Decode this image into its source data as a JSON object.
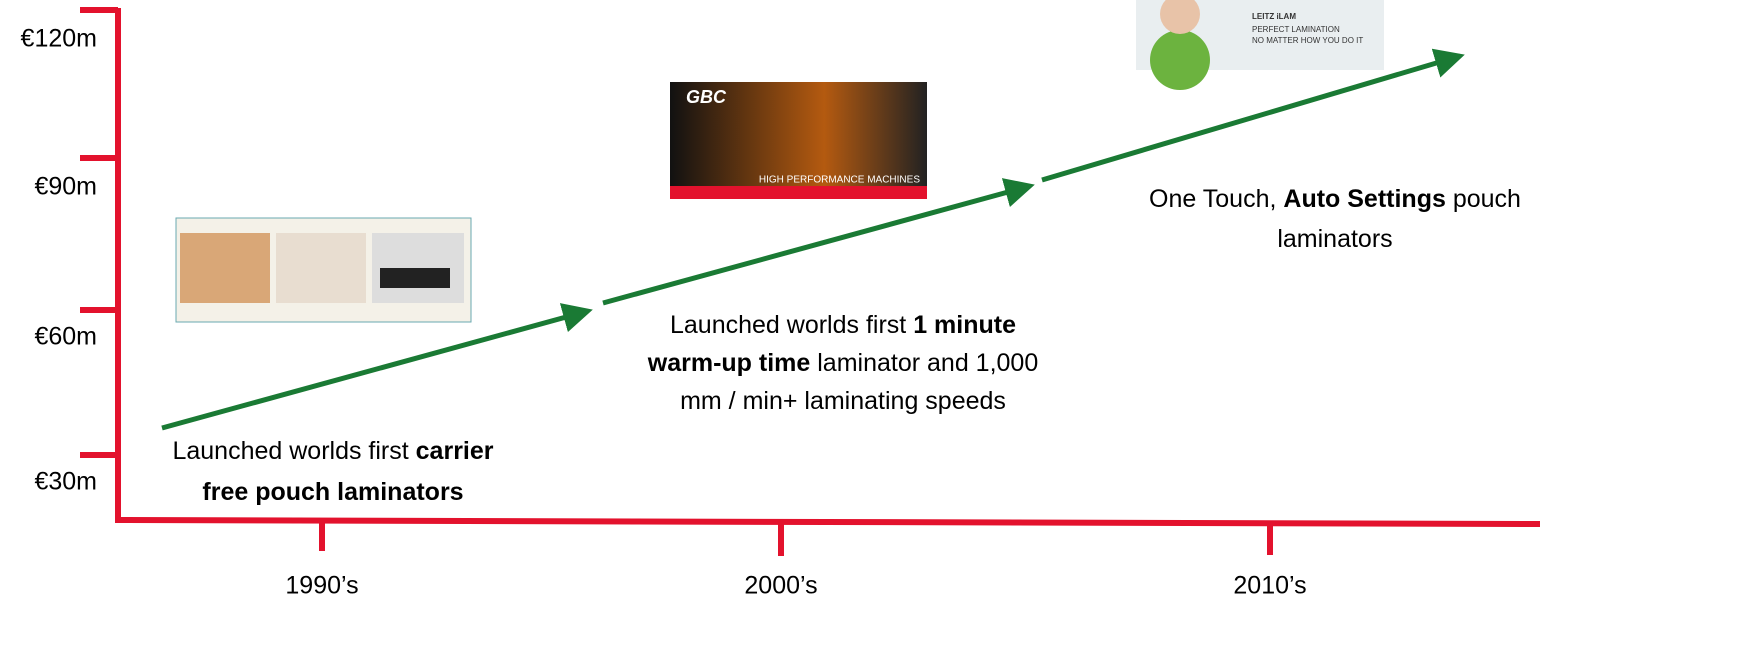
{
  "y_axis": {
    "labels": [
      "€120m",
      "€90m",
      "€60m",
      "€30m"
    ]
  },
  "x_axis": {
    "labels": [
      "1990’s",
      "2000’s",
      "2010’s"
    ]
  },
  "milestones": [
    {
      "lines": [
        [
          {
            "text": "Launched worlds first "
          },
          {
            "text": "carrier",
            "bold": true
          }
        ],
        [
          {
            "text": "free pouch laminators",
            "bold": true
          }
        ]
      ]
    },
    {
      "lines": [
        [
          {
            "text": "Launched worlds first "
          },
          {
            "text": "1 minute",
            "bold": true
          }
        ],
        [
          {
            "text": "warm-up time",
            "bold": true
          },
          {
            "text": " laminator and 1,000"
          }
        ],
        [
          {
            "text": "mm / min+ laminating speeds"
          }
        ]
      ]
    },
    {
      "lines": [
        [
          {
            "text": "One Touch, "
          },
          {
            "text": "Auto Settings",
            "bold": true
          },
          {
            "text": " pouch"
          }
        ],
        [
          {
            "text": "laminators"
          }
        ]
      ]
    }
  ],
  "gbc_image": {
    "logo": "GBC",
    "caption": "HIGH PERFORMANCE MACHINES"
  },
  "leitz_image": {
    "title": "LEITZ iLAM",
    "lines": [
      "PERFECT LAMINATION",
      "NO MATTER HOW YOU DO IT"
    ]
  }
}
